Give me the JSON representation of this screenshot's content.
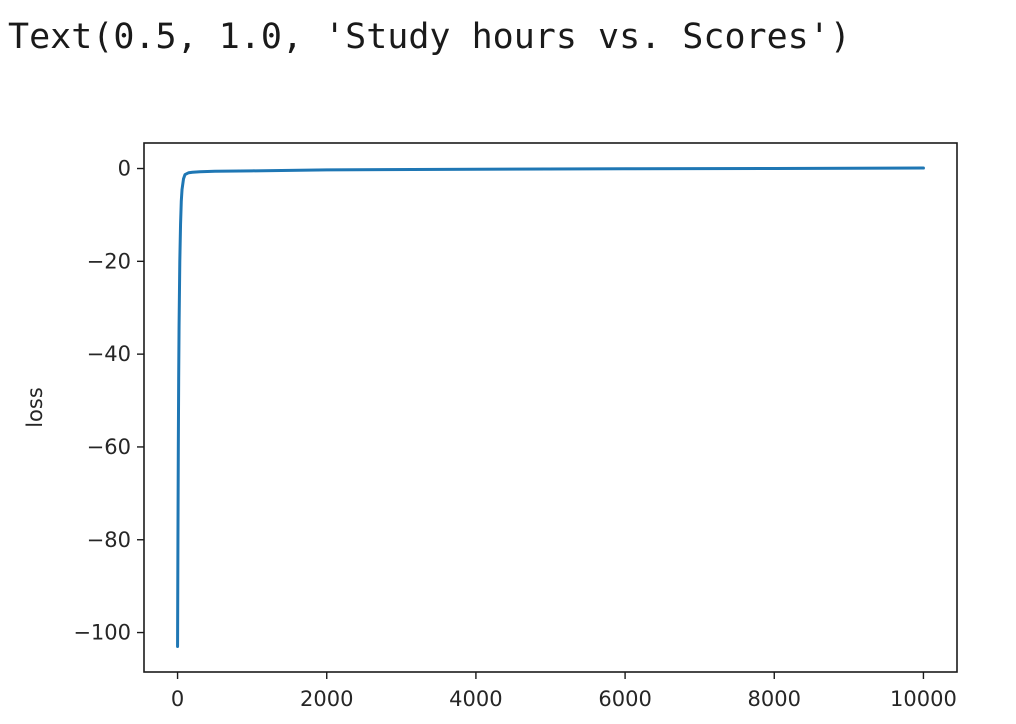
{
  "output": {
    "repr_text": "Text(0.5, 1.0, 'Study hours vs. Scores')"
  },
  "chart_data": {
    "type": "line",
    "title": "",
    "xlabel": "",
    "ylabel": "loss",
    "xlim": [
      -450,
      10450
    ],
    "ylim": [
      -108.5,
      5.5
    ],
    "x_ticks": [
      0,
      2000,
      4000,
      6000,
      8000,
      10000
    ],
    "x_tick_labels": [
      "0",
      "2000",
      "4000",
      "6000",
      "8000",
      "10000"
    ],
    "y_ticks": [
      0,
      -20,
      -40,
      -60,
      -80,
      -100
    ],
    "y_tick_labels": [
      "0",
      "−20",
      "−40",
      "−60",
      "−80",
      "−100"
    ],
    "grid": false,
    "series": [
      {
        "color": "#1f77b4",
        "x": [
          0,
          5,
          10,
          15,
          20,
          30,
          40,
          50,
          60,
          80,
          100,
          150,
          200,
          300,
          500,
          1000,
          2000,
          4000,
          6000,
          8000,
          10000
        ],
        "y": [
          -103,
          -80,
          -60,
          -45,
          -34,
          -20,
          -12,
          -7,
          -4.5,
          -2.2,
          -1.3,
          -0.9,
          -0.8,
          -0.7,
          -0.6,
          -0.5,
          -0.3,
          -0.15,
          -0.05,
          0,
          0.1
        ]
      }
    ]
  }
}
